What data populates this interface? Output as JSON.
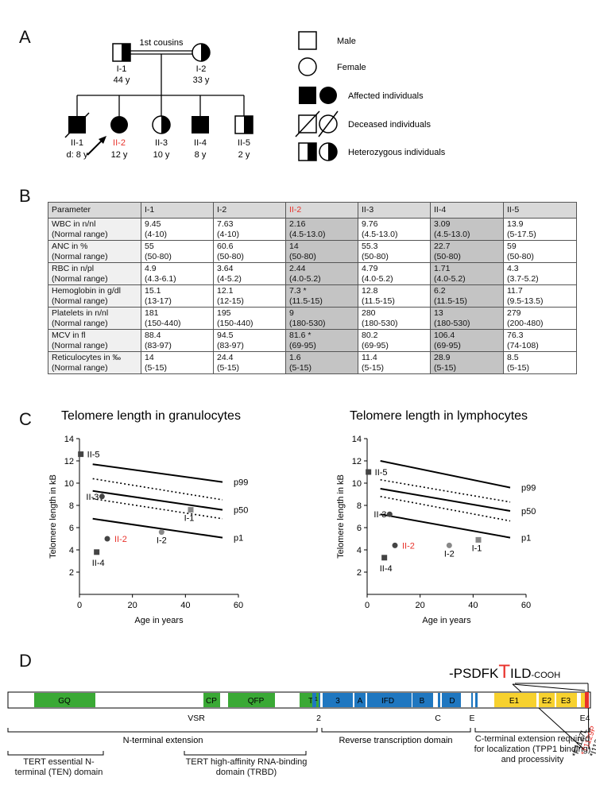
{
  "figure": {
    "panels": [
      "A",
      "B",
      "C",
      "D"
    ],
    "pedigree": {
      "consanguinity_label": "1st cousins",
      "individuals": [
        {
          "id": "I-1",
          "age": "44 y",
          "status": "heterozygous",
          "sex": "male"
        },
        {
          "id": "I-2",
          "age": "33 y",
          "status": "heterozygous",
          "sex": "female"
        },
        {
          "id": "II-1",
          "age": "d: 8 y",
          "status": "affected-deceased",
          "sex": "male"
        },
        {
          "id": "II-2",
          "age": "12 y",
          "status": "affected-proband",
          "sex": "female"
        },
        {
          "id": "II-3",
          "age": "10 y",
          "status": "heterozygous",
          "sex": "female"
        },
        {
          "id": "II-4",
          "age": "8 y",
          "status": "affected",
          "sex": "male"
        },
        {
          "id": "II-5",
          "age": "2 y",
          "status": "heterozygous",
          "sex": "male"
        }
      ],
      "legend": [
        "Male",
        "Female",
        "Affected individuals",
        "Deceased individuals",
        "Heterozygous individuals"
      ]
    },
    "table": {
      "headers": [
        "Parameter",
        "I-1",
        "I-2",
        "II-2",
        "II-3",
        "II-4",
        "II-5"
      ],
      "highlight_color": "#e8322b",
      "rows": [
        {
          "param": "WBC in n/nl",
          "sub": "(Normal range)",
          "vals": [
            "9.45",
            "7.63",
            "2.16",
            "9.76",
            "3.09",
            "13.9"
          ],
          "ranges": [
            "(4-10)",
            "(4-10)",
            "(4.5-13.0)",
            "(4.5-13.0)",
            "(4.5-13.0)",
            "(5-17.5)"
          ]
        },
        {
          "param": "ANC in %",
          "sub": "(Normal range)",
          "vals": [
            "55",
            "60.6",
            "14",
            "55.3",
            "22.7",
            "59"
          ],
          "ranges": [
            "(50-80)",
            "(50-80)",
            "(50-80)",
            "(50-80)",
            "(50-80)",
            "(50-80)"
          ]
        },
        {
          "param": "RBC in n/pl",
          "sub": "(Normal range)",
          "vals": [
            "4.9",
            "3.64",
            "2.44",
            "4.79",
            "1.71",
            "4.3"
          ],
          "ranges": [
            "(4.3-6.1)",
            "(4-5.2)",
            "(4.0-5.2)",
            "(4.0-5.2)",
            "(4.0-5.2)",
            "(3.7-5.2)"
          ]
        },
        {
          "param": "Hemoglobin in g/dl",
          "sub": "(Normal range)",
          "vals": [
            "15.1",
            "12.1",
            "7.3 *",
            "12.8",
            "6.2",
            "11.7"
          ],
          "ranges": [
            "(13-17)",
            "(12-15)",
            "(11.5-15)",
            "(11.5-15)",
            "(11.5-15)",
            "(9.5-13.5)"
          ]
        },
        {
          "param": "Platelets in n/nl",
          "sub": "(Normal range)",
          "vals": [
            "181",
            "195",
            "9",
            "280",
            "13",
            "279"
          ],
          "ranges": [
            "(150-440)",
            "(150-440)",
            "(180-530)",
            "(180-530)",
            "(180-530)",
            "(200-480)"
          ]
        },
        {
          "param": "MCV in fl",
          "sub": "(Normal range)",
          "vals": [
            "88.4",
            "94.5",
            "81.6 *",
            "80.2",
            "106.4",
            "76.3"
          ],
          "ranges": [
            "(83-97)",
            "(83-97)",
            "(69-95)",
            "(69-95)",
            "(69-95)",
            "(74-108)"
          ]
        },
        {
          "param": "Reticulocytes in ‰",
          "sub": "(Normal range)",
          "vals": [
            "14",
            "24.4",
            "1.6",
            "11.4",
            "28.9",
            "8.5"
          ],
          "ranges": [
            "(5-15)",
            "(5-15)",
            "(5-15)",
            "(5-15)",
            "(5-15)",
            "(5-15)"
          ]
        }
      ]
    },
    "chart_data": [
      {
        "type": "scatter",
        "title": "Telomere length in granulocytes",
        "xlabel": "Age in years",
        "ylabel": "Telomere length in kB",
        "xlim": [
          0,
          60
        ],
        "ylim": [
          0,
          14
        ],
        "xticks": [
          "0",
          "20",
          "40",
          "60"
        ],
        "yticks": [
          "2",
          "4",
          "6",
          "8",
          "10",
          "12",
          "14"
        ],
        "percentile_lines": [
          {
            "name": "p99",
            "style": "solid",
            "x": [
              5,
              54
            ],
            "y": [
              11.7,
              10.1
            ]
          },
          {
            "name": "",
            "style": "dotted",
            "x": [
              5,
              54
            ],
            "y": [
              10.4,
              8.5
            ]
          },
          {
            "name": "p50",
            "style": "solid",
            "x": [
              5,
              54
            ],
            "y": [
              9.3,
              7.6
            ]
          },
          {
            "name": "",
            "style": "dotted",
            "x": [
              5,
              54
            ],
            "y": [
              8.6,
              6.8
            ]
          },
          {
            "name": "p1",
            "style": "solid",
            "x": [
              5,
              54
            ],
            "y": [
              6.8,
              5.1
            ]
          }
        ],
        "points": [
          {
            "label": "II-5",
            "x": 0.5,
            "y": 12.6,
            "marker": "square",
            "color": "#444444"
          },
          {
            "label": "II-3",
            "x": 8.5,
            "y": 8.8,
            "marker": "circle",
            "color": "#444444"
          },
          {
            "label": "I-1",
            "x": 42,
            "y": 7.6,
            "marker": "square",
            "color": "#888888"
          },
          {
            "label": "II-2",
            "x": 10.5,
            "y": 5.0,
            "marker": "circle",
            "color": "#444444",
            "highlight": true
          },
          {
            "label": "I-2",
            "x": 31,
            "y": 5.6,
            "marker": "circle",
            "color": "#888888"
          },
          {
            "label": "II-4",
            "x": 6.5,
            "y": 3.8,
            "marker": "square",
            "color": "#444444"
          }
        ]
      },
      {
        "type": "scatter",
        "title": "Telomere length in lymphocytes",
        "xlabel": "Age in years",
        "ylabel": "Telomere length in kB",
        "xlim": [
          0,
          60
        ],
        "ylim": [
          0,
          14
        ],
        "xticks": [
          "0",
          "20",
          "40",
          "60"
        ],
        "yticks": [
          "2",
          "4",
          "6",
          "8",
          "10",
          "12",
          "14"
        ],
        "percentile_lines": [
          {
            "name": "p99",
            "style": "solid",
            "x": [
              5,
              54
            ],
            "y": [
              12.0,
              9.6
            ]
          },
          {
            "name": "",
            "style": "dotted",
            "x": [
              5,
              54
            ],
            "y": [
              10.3,
              8.3
            ]
          },
          {
            "name": "p50",
            "style": "solid",
            "x": [
              5,
              54
            ],
            "y": [
              9.5,
              7.5
            ]
          },
          {
            "name": "",
            "style": "dotted",
            "x": [
              5,
              54
            ],
            "y": [
              8.8,
              6.6
            ]
          },
          {
            "name": "p1",
            "style": "solid",
            "x": [
              5,
              54
            ],
            "y": [
              7.2,
              5.1
            ]
          }
        ],
        "points": [
          {
            "label": "II-5",
            "x": 0.5,
            "y": 11.0,
            "marker": "square",
            "color": "#444444"
          },
          {
            "label": "II-3",
            "x": 8.5,
            "y": 7.2,
            "marker": "circle",
            "color": "#444444"
          },
          {
            "label": "II-2",
            "x": 10.5,
            "y": 4.4,
            "marker": "circle",
            "color": "#444444",
            "highlight": true
          },
          {
            "label": "I-2",
            "x": 31,
            "y": 4.4,
            "marker": "circle",
            "color": "#888888"
          },
          {
            "label": "I-1",
            "x": 42,
            "y": 4.9,
            "marker": "square",
            "color": "#888888"
          },
          {
            "label": "II-4",
            "x": 6.5,
            "y": 3.3,
            "marker": "square",
            "color": "#444444"
          }
        ]
      }
    ],
    "protein": {
      "sequence_prefix": "-PSDFK",
      "sequence_highlight": "T",
      "sequence_suffix": "ILD",
      "sequence_end": "-COOH",
      "mutations": [
        {
          "label": "*F1127L",
          "color": "#111111"
        },
        {
          "label": "*T1129P",
          "color": "#e8322b"
        },
        {
          "label": "*I1130V",
          "color": "#111111"
        }
      ],
      "domains": [
        {
          "label": "GQ",
          "color": "#3aa935"
        },
        {
          "label": "CP",
          "color": "#3aa935"
        },
        {
          "label": "QFP",
          "color": "#3aa935"
        },
        {
          "label": "T",
          "color": "#3aa935"
        },
        {
          "label": "1",
          "color": "#1f77c0"
        },
        {
          "label": "3",
          "color": "#1f77c0"
        },
        {
          "label": "A",
          "color": "#1f77c0"
        },
        {
          "label": "IFD",
          "color": "#1f77c0"
        },
        {
          "label": "B",
          "color": "#1f77c0"
        },
        {
          "label": "D",
          "color": "#1f77c0"
        },
        {
          "label": "E1",
          "color": "#f7d12e"
        },
        {
          "label": "E2",
          "color": "#f7d12e"
        },
        {
          "label": "E3",
          "color": "#f7d12e"
        }
      ],
      "below_labels": [
        "VSR",
        "2",
        "C",
        "E",
        "E4"
      ],
      "regions": [
        "N-terminal extension",
        "Reverse transcription domain",
        "C-terminal extension required for localization (TPP1 binding) and processivity"
      ],
      "subregions": [
        "TERT essential N-terminal (TEN) domain",
        "TERT high-affinity RNA-binding domain (TRBD)"
      ]
    }
  }
}
